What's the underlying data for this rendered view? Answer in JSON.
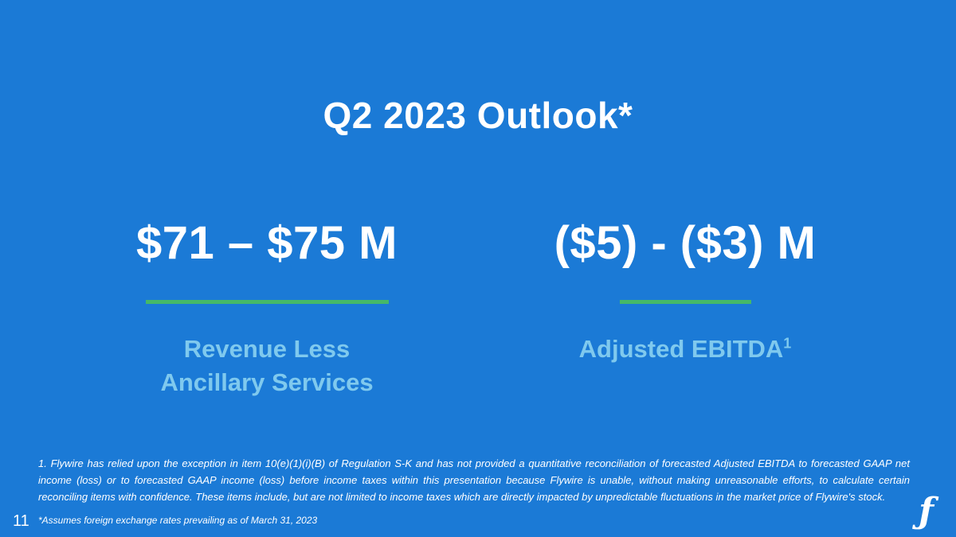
{
  "slide": {
    "title": "Q2 2023 Outlook*",
    "metrics": [
      {
        "value": "$71 – $75 M",
        "label_line1": "Revenue Less",
        "label_line2": "Ancillary Services"
      },
      {
        "value": "($5) - ($3) M",
        "label": "Adjusted EBITDA",
        "label_superscript": "1"
      }
    ],
    "footnote": "1. Flywire has relied upon the exception in item 10(e)(1)(i)(B) of Regulation S-K and has not provided a quantitative reconciliation of forecasted Adjusted EBITDA to forecasted GAAP net income (loss) or to forecasted GAAP income (loss) before income taxes within this presentation because Flywire is unable, without making unreasonable efforts, to calculate certain reconciling items with confidence. These items include, but are not limited to income taxes which are directly impacted by unpredictable fluctuations in the market price of Flywire's stock.",
    "page_number": "11",
    "fx_note": "*Assumes foreign exchange rates prevailing as of March 31, 2023",
    "logo_glyph": "ƒ",
    "colors": {
      "background": "#1b7ad6",
      "accent_green": "#45b868",
      "label_light_blue": "#7fc9ee",
      "text_white": "#ffffff"
    }
  }
}
